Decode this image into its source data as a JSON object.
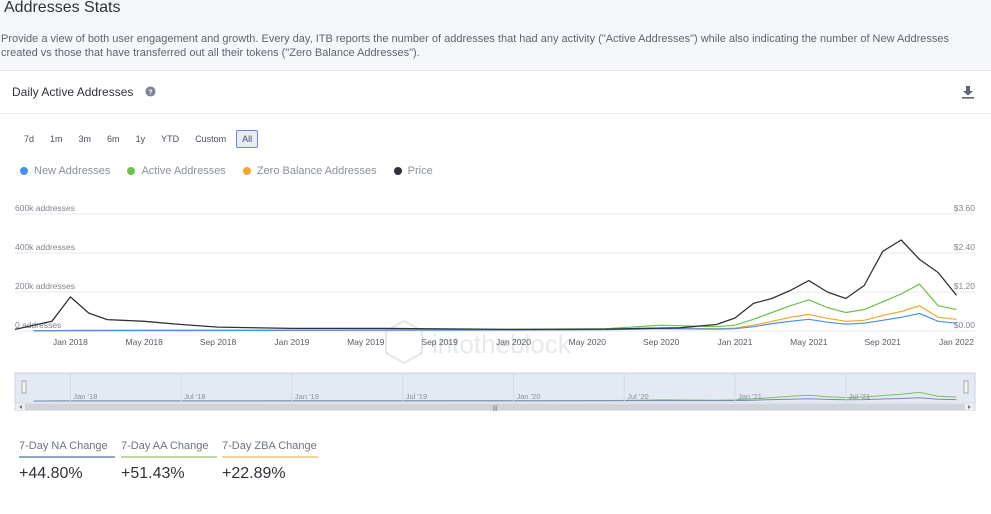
{
  "page": {
    "title": "Addresses Stats",
    "description": "Provide a view of both user engagement and growth. Every day, ITB reports the number of addresses that had any activity (\"Active Addresses\") while also indicating the number of New Addresses created vs those that have transferred out all their tokens (\"Zero Balance Addresses\")."
  },
  "card": {
    "title": "Daily Active Addresses",
    "help_icon": "question-circle-icon",
    "download_icon": "download-icon"
  },
  "range_buttons": [
    {
      "label": "7d",
      "active": false
    },
    {
      "label": "1m",
      "active": false
    },
    {
      "label": "3m",
      "active": false
    },
    {
      "label": "6m",
      "active": false
    },
    {
      "label": "1y",
      "active": false
    },
    {
      "label": "YTD",
      "active": false
    },
    {
      "label": "Custom",
      "active": false
    },
    {
      "label": "All",
      "active": true
    }
  ],
  "watermark": "intotheblock",
  "stats": [
    {
      "label": "7-Day NA Change",
      "value": "+44.80%",
      "color": "#8fa6c7"
    },
    {
      "label": "7-Day AA Change",
      "value": "+51.43%",
      "color": "#b9d7a3"
    },
    {
      "label": "7-Day ZBA Change",
      "value": "+22.89%",
      "color": "#f2d596"
    }
  ],
  "chart_data": {
    "type": "line",
    "legend": [
      {
        "name": "New Addresses",
        "color": "#4a8ef0"
      },
      {
        "name": "Active Addresses",
        "color": "#6cc24a"
      },
      {
        "name": "Zero Balance Addresses",
        "color": "#f2a62c"
      },
      {
        "name": "Price",
        "color": "#2f3339"
      }
    ],
    "legend_position": "top-left",
    "x_ticks": [
      "Jan 2018",
      "May 2018",
      "Sep 2018",
      "Jan 2019",
      "May 2019",
      "Sep 2019",
      "Jan 2020",
      "May 2020",
      "Sep 2020",
      "Jan 2021",
      "May 2021",
      "Sep 2021",
      "Jan 2022"
    ],
    "y_left": {
      "ticks": [
        "0 addresses",
        "200k addresses",
        "400k addresses",
        "600k addresses"
      ],
      "range": [
        0,
        600000
      ]
    },
    "y_right": {
      "ticks": [
        "$0.00",
        "$1.20",
        "$2.40",
        "$3.60"
      ],
      "range": [
        0,
        3.6
      ]
    },
    "x_range": [
      "2017-10",
      "2022-02"
    ],
    "grid": true,
    "series": [
      {
        "name": "Active Addresses",
        "axis": "left",
        "x": [
          "2017-11",
          "2018-01",
          "2018-06",
          "2019-01",
          "2019-06",
          "2020-01",
          "2020-06",
          "2020-09",
          "2020-12",
          "2021-01",
          "2021-02",
          "2021-03",
          "2021-04",
          "2021-05",
          "2021-06",
          "2021-07",
          "2021-08",
          "2021-09",
          "2021-10",
          "2021-11",
          "2021-12",
          "2022-01"
        ],
        "values": [
          1000,
          3000,
          4000,
          5000,
          6000,
          8000,
          12000,
          30000,
          22000,
          30000,
          60000,
          95000,
          130000,
          160000,
          120000,
          95000,
          110000,
          150000,
          190000,
          240000,
          130000,
          110000
        ]
      },
      {
        "name": "Zero Balance Addresses",
        "axis": "left",
        "x": [
          "2017-11",
          "2018-01",
          "2018-06",
          "2019-01",
          "2019-06",
          "2020-01",
          "2020-06",
          "2020-09",
          "2020-12",
          "2021-01",
          "2021-02",
          "2021-03",
          "2021-04",
          "2021-05",
          "2021-06",
          "2021-07",
          "2021-08",
          "2021-09",
          "2021-10",
          "2021-11",
          "2021-12",
          "2022-01"
        ],
        "values": [
          500,
          2000,
          3000,
          4000,
          5000,
          6000,
          8000,
          15000,
          12000,
          15000,
          30000,
          50000,
          70000,
          85000,
          65000,
          50000,
          55000,
          80000,
          100000,
          130000,
          70000,
          60000
        ]
      },
      {
        "name": "New Addresses",
        "axis": "left",
        "x": [
          "2017-11",
          "2018-01",
          "2018-06",
          "2019-01",
          "2019-06",
          "2020-01",
          "2020-06",
          "2020-09",
          "2020-12",
          "2021-01",
          "2021-02",
          "2021-03",
          "2021-04",
          "2021-05",
          "2021-06",
          "2021-07",
          "2021-08",
          "2021-09",
          "2021-10",
          "2021-11",
          "2021-12",
          "2022-01"
        ],
        "values": [
          500,
          1500,
          2500,
          3500,
          4000,
          5000,
          7000,
          12000,
          10000,
          12000,
          22000,
          38000,
          50000,
          60000,
          45000,
          35000,
          40000,
          55000,
          70000,
          90000,
          50000,
          40000
        ]
      },
      {
        "name": "Price",
        "axis": "right",
        "x": [
          "2017-10",
          "2017-12",
          "2018-01",
          "2018-02",
          "2018-03",
          "2018-05",
          "2018-07",
          "2018-09",
          "2019-01",
          "2019-06",
          "2020-01",
          "2020-06",
          "2020-10",
          "2020-12",
          "2021-01",
          "2021-02",
          "2021-03",
          "2021-04",
          "2021-05",
          "2021-06",
          "2021-07",
          "2021-08",
          "2021-09",
          "2021-10",
          "2021-11",
          "2021-12",
          "2022-01"
        ],
        "values": [
          0.05,
          0.3,
          1.05,
          0.55,
          0.35,
          0.3,
          0.2,
          0.12,
          0.08,
          0.08,
          0.05,
          0.06,
          0.1,
          0.2,
          0.4,
          0.85,
          1.0,
          1.25,
          1.55,
          1.2,
          1.0,
          1.4,
          2.45,
          2.8,
          2.2,
          1.8,
          1.1
        ]
      }
    ]
  }
}
